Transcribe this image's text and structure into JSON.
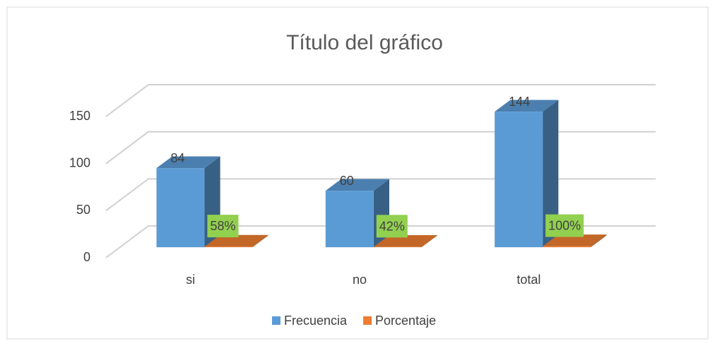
{
  "chart_data": {
    "type": "bar3d",
    "title": "Título del gráfico",
    "categories": [
      "si",
      "no",
      "total"
    ],
    "series": [
      {
        "name": "Frecuencia",
        "color": "#5b9bd5",
        "values": [
          84,
          60,
          144
        ]
      },
      {
        "name": "Porcentaje",
        "color": "#ed7d31",
        "values": [
          0.58,
          0.42,
          1
        ],
        "value_labels": [
          "58%",
          "42%",
          "100%"
        ]
      }
    ],
    "ylim": [
      0,
      150
    ],
    "yticks": [
      0,
      50,
      100,
      150
    ],
    "grid": true,
    "legend": "bottom"
  }
}
